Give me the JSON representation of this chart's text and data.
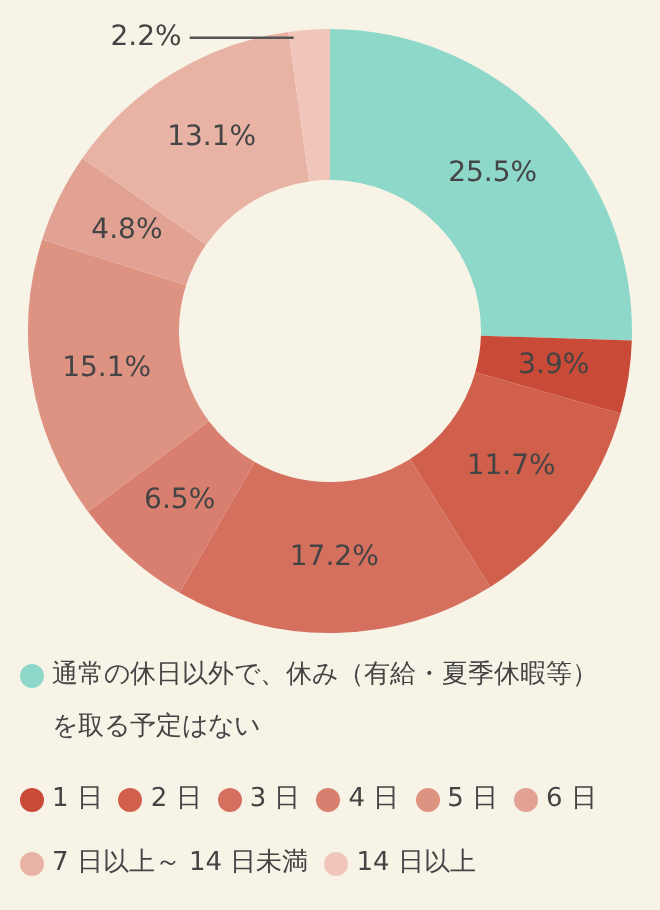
{
  "chart_data": {
    "type": "donut",
    "categories": [
      "通常の休日以外で、休み（有給・夏季休暇等）を取る予定はない",
      "1 日",
      "2 日",
      "3 日",
      "4 日",
      "5 日",
      "6 日",
      "7 日以上～ 14 日未満",
      "14 日以上"
    ],
    "values": [
      25.5,
      3.9,
      11.7,
      17.2,
      6.5,
      15.1,
      4.8,
      13.1,
      2.2
    ],
    "value_labels": [
      "25.5%",
      "3.9%",
      "11.7%",
      "17.2%",
      "6.5%",
      "15.1%",
      "4.8%",
      "13.1%",
      "2.2%"
    ],
    "colors": [
      "#8ed8c9",
      "#c94a36",
      "#d0604c",
      "#d5705f",
      "#d97f6f",
      "#de9282",
      "#e2a293",
      "#e8b3a5",
      "#efc6b9"
    ],
    "legend": "bottom"
  }
}
